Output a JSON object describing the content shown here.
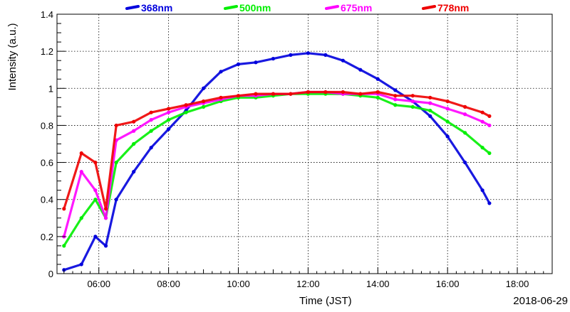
{
  "chart_data": {
    "type": "scatter",
    "title": "",
    "xlabel": "Time (JST)",
    "ylabel": "Intensity (a.u.)",
    "date_label": "2018-06-29",
    "x_unit": "hour",
    "xlim": [
      4.8,
      19.0
    ],
    "ylim": [
      0,
      1.4
    ],
    "x_ticks": [
      {
        "value": 6,
        "label": "06:00"
      },
      {
        "value": 8,
        "label": "08:00"
      },
      {
        "value": 10,
        "label": "10:00"
      },
      {
        "value": 12,
        "label": "12:00"
      },
      {
        "value": 14,
        "label": "14:00"
      },
      {
        "value": 16,
        "label": "16:00"
      },
      {
        "value": 18,
        "label": "18:00"
      }
    ],
    "y_ticks": [
      {
        "value": 0,
        "label": "0"
      },
      {
        "value": 0.2,
        "label": "0.2"
      },
      {
        "value": 0.4,
        "label": "0.4"
      },
      {
        "value": 0.6,
        "label": "0.6"
      },
      {
        "value": 0.8,
        "label": "0.8"
      },
      {
        "value": 1.0,
        "label": "1"
      },
      {
        "value": 1.2,
        "label": "1.2"
      },
      {
        "value": 1.4,
        "label": "1.4"
      }
    ],
    "grid": true,
    "legend_position": "top",
    "series": [
      {
        "name": "368nm",
        "color": "#0000dd",
        "points": [
          [
            5.0,
            0.02
          ],
          [
            5.5,
            0.05
          ],
          [
            5.9,
            0.2
          ],
          [
            6.2,
            0.15
          ],
          [
            6.5,
            0.4
          ],
          [
            7.0,
            0.55
          ],
          [
            7.5,
            0.68
          ],
          [
            8.0,
            0.78
          ],
          [
            8.5,
            0.88
          ],
          [
            9.0,
            1.0
          ],
          [
            9.5,
            1.09
          ],
          [
            10.0,
            1.13
          ],
          [
            10.5,
            1.14
          ],
          [
            11.0,
            1.16
          ],
          [
            11.5,
            1.18
          ],
          [
            12.0,
            1.19
          ],
          [
            12.5,
            1.18
          ],
          [
            13.0,
            1.15
          ],
          [
            13.5,
            1.1
          ],
          [
            14.0,
            1.05
          ],
          [
            14.5,
            0.99
          ],
          [
            15.0,
            0.93
          ],
          [
            15.5,
            0.85
          ],
          [
            16.0,
            0.74
          ],
          [
            16.5,
            0.6
          ],
          [
            17.0,
            0.45
          ],
          [
            17.2,
            0.38
          ]
        ]
      },
      {
        "name": "500nm",
        "color": "#00ee00",
        "points": [
          [
            5.0,
            0.15
          ],
          [
            5.5,
            0.3
          ],
          [
            5.9,
            0.4
          ],
          [
            6.2,
            0.3
          ],
          [
            6.5,
            0.6
          ],
          [
            7.0,
            0.7
          ],
          [
            7.5,
            0.77
          ],
          [
            8.0,
            0.83
          ],
          [
            8.5,
            0.87
          ],
          [
            9.0,
            0.9
          ],
          [
            9.5,
            0.93
          ],
          [
            10.0,
            0.95
          ],
          [
            10.5,
            0.95
          ],
          [
            11.0,
            0.96
          ],
          [
            11.5,
            0.97
          ],
          [
            12.0,
            0.97
          ],
          [
            12.5,
            0.97
          ],
          [
            13.0,
            0.97
          ],
          [
            13.5,
            0.96
          ],
          [
            14.0,
            0.95
          ],
          [
            14.5,
            0.91
          ],
          [
            15.0,
            0.9
          ],
          [
            15.5,
            0.88
          ],
          [
            16.0,
            0.82
          ],
          [
            16.5,
            0.76
          ],
          [
            17.0,
            0.68
          ],
          [
            17.2,
            0.65
          ]
        ]
      },
      {
        "name": "675nm",
        "color": "#ff00ff",
        "points": [
          [
            5.0,
            0.2
          ],
          [
            5.5,
            0.55
          ],
          [
            5.9,
            0.45
          ],
          [
            6.2,
            0.3
          ],
          [
            6.5,
            0.72
          ],
          [
            7.0,
            0.77
          ],
          [
            7.5,
            0.83
          ],
          [
            8.0,
            0.87
          ],
          [
            8.5,
            0.9
          ],
          [
            9.0,
            0.92
          ],
          [
            9.5,
            0.94
          ],
          [
            10.0,
            0.96
          ],
          [
            10.5,
            0.96
          ],
          [
            11.0,
            0.97
          ],
          [
            11.5,
            0.97
          ],
          [
            12.0,
            0.98
          ],
          [
            12.5,
            0.98
          ],
          [
            13.0,
            0.97
          ],
          [
            13.5,
            0.97
          ],
          [
            14.0,
            0.97
          ],
          [
            14.5,
            0.94
          ],
          [
            15.0,
            0.93
          ],
          [
            15.5,
            0.92
          ],
          [
            16.0,
            0.89
          ],
          [
            16.5,
            0.86
          ],
          [
            17.0,
            0.82
          ],
          [
            17.2,
            0.8
          ]
        ]
      },
      {
        "name": "778nm",
        "color": "#ee0000",
        "points": [
          [
            5.0,
            0.35
          ],
          [
            5.5,
            0.65
          ],
          [
            5.9,
            0.6
          ],
          [
            6.2,
            0.35
          ],
          [
            6.5,
            0.8
          ],
          [
            7.0,
            0.82
          ],
          [
            7.5,
            0.87
          ],
          [
            8.0,
            0.89
          ],
          [
            8.5,
            0.91
          ],
          [
            9.0,
            0.93
          ],
          [
            9.5,
            0.95
          ],
          [
            10.0,
            0.96
          ],
          [
            10.5,
            0.97
          ],
          [
            11.0,
            0.97
          ],
          [
            11.5,
            0.97
          ],
          [
            12.0,
            0.98
          ],
          [
            12.5,
            0.98
          ],
          [
            13.0,
            0.98
          ],
          [
            13.5,
            0.97
          ],
          [
            14.0,
            0.98
          ],
          [
            14.5,
            0.96
          ],
          [
            15.0,
            0.96
          ],
          [
            15.5,
            0.95
          ],
          [
            16.0,
            0.93
          ],
          [
            16.5,
            0.9
          ],
          [
            17.0,
            0.87
          ],
          [
            17.2,
            0.85
          ]
        ]
      }
    ]
  }
}
